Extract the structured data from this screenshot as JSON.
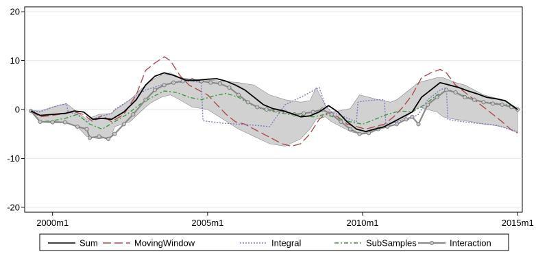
{
  "chart_data": {
    "type": "line",
    "title": "",
    "xlabel": "",
    "ylabel": "",
    "xlim": [
      1999.1,
      2015.15
    ],
    "ylim": [
      -21,
      21
    ],
    "grid": true,
    "legend_position": "bottom",
    "x_ticks": [
      {
        "value": 2000.0,
        "label": "2000m1"
      },
      {
        "value": 2005.0,
        "label": "2005m1"
      },
      {
        "value": 2010.0,
        "label": "2010m1"
      },
      {
        "value": 2015.0,
        "label": "2015m1"
      }
    ],
    "y_ticks": [
      {
        "value": 20,
        "label": "20"
      },
      {
        "value": 10,
        "label": "10"
      },
      {
        "value": 0,
        "label": "0"
      },
      {
        "value": -10,
        "label": "-10"
      },
      {
        "value": -20,
        "label": "-20"
      }
    ],
    "band": {
      "fill": "#cccccc",
      "stroke": "#888888",
      "x": [
        1999.3,
        1999.6,
        2000.0,
        2000.3,
        2000.45,
        2000.8,
        2001.1,
        2001.5,
        2001.9,
        2002.0,
        2002.5,
        2003.0,
        2003.2,
        2003.5,
        2003.8,
        2004.1,
        2004.5,
        2005.0,
        2005.5,
        2006.0,
        2006.5,
        2007.0,
        2007.5,
        2008.0,
        2008.3,
        2008.5,
        2008.8,
        2009.0,
        2009.3,
        2009.6,
        2009.9,
        2010.2,
        2010.5,
        2010.9,
        2011.1,
        2011.3,
        2011.5,
        2011.8,
        2012.1,
        2012.4,
        2012.6,
        2012.8,
        2013.0,
        2013.3,
        2013.6,
        2013.9,
        2014.2,
        2014.5,
        2014.8,
        2015.0
      ],
      "upper": [
        -0.2,
        -0.3,
        0.5,
        1.0,
        1.2,
        -0.5,
        -2.0,
        -1.0,
        -0.8,
        -0.2,
        2.0,
        5.0,
        6.0,
        7.0,
        7.5,
        6.5,
        6.2,
        6.0,
        5.8,
        5.5,
        5.0,
        3.0,
        2.0,
        1.5,
        1.8,
        4.5,
        0.8,
        -0.5,
        -0.2,
        0.2,
        3.0,
        2.5,
        2.0,
        1.5,
        2.0,
        3.0,
        4.0,
        5.5,
        6.0,
        6.5,
        6.5,
        6.0,
        5.5,
        5.0,
        4.0,
        3.0,
        2.5,
        2.0,
        1.0,
        0.3
      ],
      "lower": [
        -0.5,
        -2.5,
        -2.4,
        -2.5,
        -2.7,
        -3.5,
        -5.5,
        -6.0,
        -5.5,
        -3.5,
        -2.5,
        0.5,
        1.5,
        2.5,
        3.0,
        2.0,
        0.5,
        0.0,
        -2.0,
        -4.0,
        -5.5,
        -7.0,
        -7.5,
        -6.0,
        -4.0,
        -2.0,
        -1.5,
        -2.5,
        -3.5,
        -4.5,
        -5.0,
        -4.5,
        -3.5,
        -3.0,
        -2.5,
        -2.0,
        -1.0,
        0.5,
        0.0,
        -0.5,
        -1.5,
        -1.8,
        -2.0,
        -2.3,
        -2.6,
        -3.0,
        -3.2,
        -3.5,
        -4.2,
        -4.8
      ]
    },
    "series": [
      {
        "name": "Sum",
        "color": "#000000",
        "dash": "none",
        "marker": false,
        "x": [
          1999.3,
          1999.6,
          2000.0,
          2000.4,
          2000.7,
          2001.0,
          2001.3,
          2001.6,
          2001.9,
          2002.3,
          2002.7,
          2003.0,
          2003.3,
          2003.6,
          2003.9,
          2004.3,
          2004.7,
          2005.0,
          2005.3,
          2005.6,
          2005.9,
          2006.2,
          2006.5,
          2006.8,
          2007.1,
          2007.4,
          2007.7,
          2008.0,
          2008.3,
          2008.6,
          2008.9,
          2009.2,
          2009.5,
          2009.8,
          2010.1,
          2010.4,
          2010.7,
          2011.0,
          2011.3,
          2011.6,
          2011.9,
          2012.2,
          2012.5,
          2012.8,
          2013.1,
          2013.4,
          2013.7,
          2014.0,
          2014.3,
          2014.6,
          2015.0
        ],
        "values": [
          -0.3,
          -1.2,
          -1.0,
          -0.8,
          -0.3,
          -0.5,
          -2.0,
          -1.8,
          -2.0,
          -0.5,
          2.0,
          5.0,
          6.8,
          7.5,
          7.0,
          6.0,
          6.0,
          6.2,
          6.3,
          5.8,
          5.0,
          4.0,
          2.5,
          1.0,
          0.2,
          -0.2,
          -0.8,
          -1.5,
          -1.3,
          -0.5,
          0.8,
          -0.5,
          -2.5,
          -4.0,
          -4.5,
          -4.0,
          -3.5,
          -2.5,
          -1.5,
          -0.5,
          2.5,
          4.0,
          5.5,
          5.0,
          4.5,
          3.8,
          3.2,
          2.5,
          2.2,
          1.8,
          0.0
        ]
      },
      {
        "name": "MovingWindow",
        "color": "#b04a4a",
        "dash": "12,5",
        "marker": false,
        "x": [
          1999.3,
          1999.6,
          2000.0,
          2000.4,
          2000.7,
          2001.0,
          2001.3,
          2001.6,
          2001.9,
          2002.3,
          2002.7,
          2003.0,
          2003.3,
          2003.6,
          2003.8,
          2004.1,
          2004.4,
          2004.7,
          2005.0,
          2005.3,
          2005.6,
          2005.9,
          2006.2,
          2006.5,
          2006.8,
          2007.1,
          2007.4,
          2007.7,
          2008.0,
          2008.3,
          2008.6,
          2008.9,
          2009.2,
          2009.5,
          2009.8,
          2010.1,
          2010.4,
          2010.7,
          2011.0,
          2011.3,
          2011.6,
          2011.9,
          2012.2,
          2012.5,
          2012.7,
          2013.0,
          2013.3,
          2013.6,
          2013.9,
          2014.2,
          2014.5,
          2014.8,
          2015.0
        ],
        "values": [
          -0.3,
          -1.5,
          -1.2,
          -0.8,
          -0.5,
          -1.0,
          -2.5,
          -1.2,
          -2.5,
          -1.0,
          3.0,
          8.0,
          9.5,
          10.8,
          10.0,
          7.0,
          5.0,
          4.0,
          3.0,
          1.0,
          -1.0,
          -2.5,
          -3.0,
          -4.0,
          -5.0,
          -6.0,
          -7.0,
          -7.5,
          -7.0,
          -5.0,
          -2.0,
          -0.5,
          -1.5,
          -3.0,
          -3.5,
          -4.0,
          -3.5,
          -3.0,
          -1.5,
          0.5,
          3.0,
          6.5,
          7.5,
          8.2,
          7.5,
          5.0,
          3.5,
          2.0,
          0.5,
          -1.0,
          -2.5,
          -4.2,
          -4.8
        ]
      },
      {
        "name": "Integral",
        "color": "#7b7bc9",
        "dash": "2,2",
        "marker": false,
        "x": [
          1999.3,
          1999.6,
          2000.0,
          2000.3,
          2000.45,
          2000.5,
          2000.8,
          2001.1,
          2001.5,
          2001.9,
          2002.0,
          2002.5,
          2003.0,
          2003.5,
          2004.0,
          2004.5,
          2004.8,
          2004.85,
          2005.5,
          2006.0,
          2006.5,
          2007.0,
          2007.5,
          2008.0,
          2008.3,
          2008.6,
          2008.8,
          2009.0,
          2009.4,
          2009.8,
          2009.85,
          2010.0,
          2010.5,
          2010.7,
          2010.75,
          2011.1,
          2011.5,
          2011.8,
          2012.1,
          2012.5,
          2012.7,
          2012.75,
          2013.0,
          2013.5,
          2014.0,
          2014.3,
          2014.6,
          2015.0
        ],
        "values": [
          -0.3,
          -0.5,
          0.5,
          1.0,
          1.2,
          -0.5,
          -1.0,
          -2.5,
          -1.5,
          -0.8,
          0.0,
          2.0,
          4.0,
          5.0,
          5.5,
          5.8,
          5.5,
          -2.3,
          -2.8,
          -3.0,
          -3.2,
          -3.5,
          1.0,
          2.5,
          3.5,
          4.5,
          0.8,
          -0.5,
          -1.5,
          -2.5,
          1.5,
          1.7,
          2.0,
          2.0,
          -3.0,
          -2.5,
          -2.0,
          -1.0,
          2.0,
          4.0,
          4.5,
          -2.0,
          -2.3,
          -2.7,
          -3.0,
          -3.2,
          -3.8,
          -4.5
        ]
      },
      {
        "name": "SubSamples",
        "color": "#3a9a3a",
        "dash": "6,3,2,3",
        "marker": false,
        "x": [
          1999.3,
          1999.6,
          2000.0,
          2000.4,
          2000.8,
          2001.2,
          2001.6,
          2002.0,
          2002.4,
          2002.8,
          2003.2,
          2003.6,
          2004.0,
          2004.4,
          2004.8,
          2005.2,
          2005.6,
          2006.0,
          2006.4,
          2006.8,
          2007.2,
          2007.6,
          2008.0,
          2008.4,
          2008.8,
          2009.2,
          2009.6,
          2010.0,
          2010.4,
          2010.8,
          2011.2,
          2011.6,
          2012.0,
          2012.4,
          2012.8,
          2013.2,
          2013.6,
          2014.0,
          2014.4,
          2014.8,
          2015.0
        ],
        "values": [
          -0.3,
          -2.5,
          -2.3,
          -1.8,
          -1.0,
          -3.0,
          -4.0,
          -2.5,
          -1.0,
          1.0,
          2.5,
          3.8,
          3.5,
          2.5,
          2.0,
          2.8,
          3.3,
          2.5,
          1.0,
          0.0,
          -0.5,
          -1.0,
          -1.2,
          -1.5,
          -1.0,
          -1.8,
          -2.5,
          -3.0,
          -2.0,
          -1.0,
          -0.3,
          -0.5,
          1.0,
          3.0,
          4.0,
          3.0,
          2.0,
          1.5,
          1.2,
          0.8,
          0.0
        ]
      },
      {
        "name": "Interaction",
        "color": "#8a8a8a",
        "dash": "none",
        "marker": true,
        "x": [
          1999.3,
          1999.6,
          2000.0,
          2000.4,
          2000.8,
          2001.1,
          2001.2,
          2001.5,
          2001.8,
          2002.0,
          2002.3,
          2002.6,
          2003.0,
          2003.3,
          2003.6,
          2003.9,
          2004.2,
          2004.5,
          2004.8,
          2005.1,
          2005.4,
          2005.7,
          2006.0,
          2006.3,
          2006.6,
          2006.9,
          2007.2,
          2007.5,
          2007.8,
          2008.1,
          2008.4,
          2008.7,
          2009.0,
          2009.3,
          2009.6,
          2009.9,
          2010.2,
          2010.5,
          2010.8,
          2011.1,
          2011.4,
          2011.6,
          2011.8,
          2012.1,
          2012.4,
          2012.7,
          2013.0,
          2013.3,
          2013.6,
          2013.9,
          2014.2,
          2014.5,
          2014.8,
          2015.0
        ],
        "values": [
          -0.3,
          -2.5,
          -2.6,
          -2.6,
          -3.5,
          -4.0,
          -5.8,
          -5.5,
          -6.0,
          -5.0,
          -3.0,
          -1.0,
          2.0,
          4.0,
          5.0,
          5.5,
          5.8,
          6.0,
          5.8,
          5.5,
          5.3,
          4.5,
          3.0,
          1.5,
          0.5,
          0.0,
          -0.2,
          -0.5,
          -1.0,
          -0.8,
          -0.5,
          0.0,
          -1.0,
          -2.5,
          -4.0,
          -5.0,
          -4.8,
          -4.0,
          -3.5,
          -3.0,
          -2.0,
          -1.5,
          -3.0,
          1.0,
          2.5,
          4.0,
          3.5,
          2.5,
          2.0,
          1.5,
          1.2,
          1.0,
          0.5,
          0.0
        ]
      }
    ]
  }
}
